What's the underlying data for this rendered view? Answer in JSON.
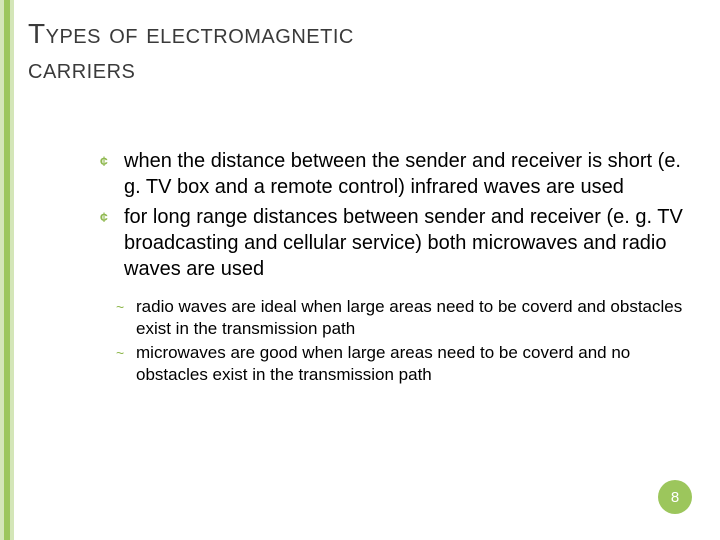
{
  "colors": {
    "stripe_outer": "#d4e6b8",
    "stripe_inner": "#9cc65c",
    "title_text": "#3a3a3a",
    "body_text": "#000000",
    "bullet_accent": "#8fb84f",
    "badge_bg": "#9cc65c",
    "badge_text": "#ffffff",
    "background": "#ffffff"
  },
  "title": {
    "line1": "Types of electromagnetic",
    "line2": "carriers",
    "fontsize_cap": 32,
    "fontsize_rest": 28
  },
  "bullets": [
    "when the distance between the sender and receiver is short (e. g. TV box and a remote control) infrared waves are used",
    "for long range distances between sender and receiver (e. g. TV broadcasting and cellular service) both microwaves and radio waves are used"
  ],
  "sub_bullets": [
    "radio waves are ideal when large areas need to be coverd and obstacles exist in the transmission path",
    "microwaves are good when large areas need to be coverd and no obstacles exist in the transmission path"
  ],
  "bullet_marker": "¢",
  "sub_marker": "~",
  "page_number": "8",
  "typography": {
    "body_fontsize": 20,
    "sub_fontsize": 17,
    "font_family": "Arial"
  }
}
